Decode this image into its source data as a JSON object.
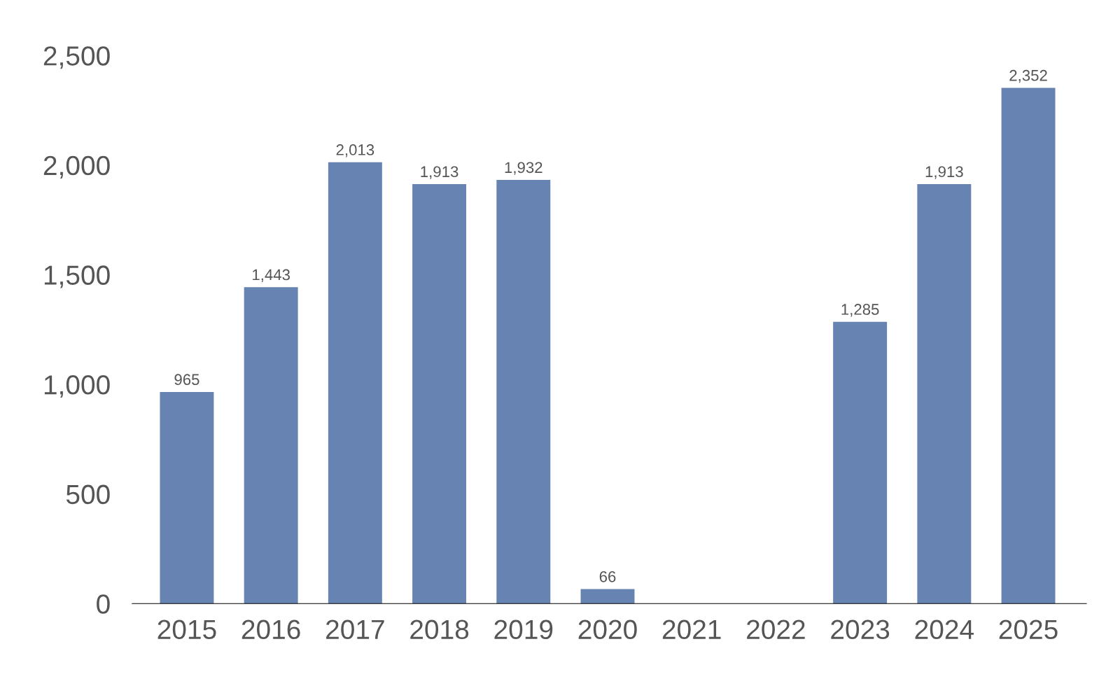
{
  "chart_data": {
    "type": "bar",
    "categories": [
      "2015",
      "2016",
      "2017",
      "2018",
      "2019",
      "2020",
      "2021",
      "2022",
      "2023",
      "2024",
      "2025"
    ],
    "values": [
      965,
      1443,
      2013,
      1913,
      1932,
      66,
      null,
      null,
      1285,
      1913,
      2352
    ],
    "value_labels": [
      "965",
      "1,443",
      "2,013",
      "1,913",
      "1,932",
      "66",
      null,
      null,
      "1,285",
      "1,913",
      "2,352"
    ],
    "color": "#6783b1",
    "ylim": [
      0,
      2500
    ],
    "yticks": [
      {
        "value": 0,
        "label": "0"
      },
      {
        "value": 500,
        "label": "500"
      },
      {
        "value": 1000,
        "label": "1,000"
      },
      {
        "value": 1500,
        "label": "1,500"
      },
      {
        "value": 2000,
        "label": "2,000"
      },
      {
        "value": 2500,
        "label": "2,500"
      }
    ],
    "grid": false
  }
}
